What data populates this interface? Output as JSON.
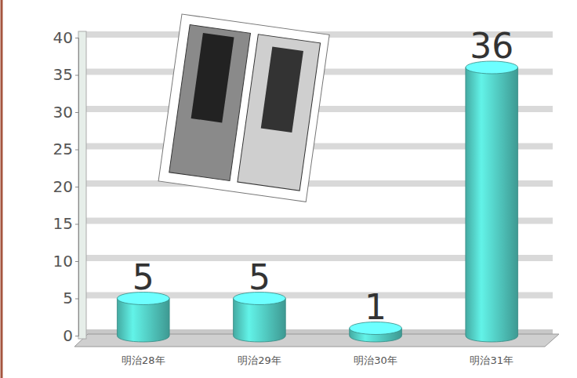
{
  "chart_data": {
    "type": "bar",
    "categories": [
      "明治28年",
      "明治29年",
      "明治30年",
      "明治31年"
    ],
    "values": [
      5,
      5,
      1,
      36
    ],
    "color": "#4fc4bb",
    "ylim": [
      0,
      40
    ],
    "yticks": [
      0,
      5,
      10,
      15,
      20,
      25,
      30,
      35,
      40
    ],
    "grid": true,
    "data_labels": true
  }
}
